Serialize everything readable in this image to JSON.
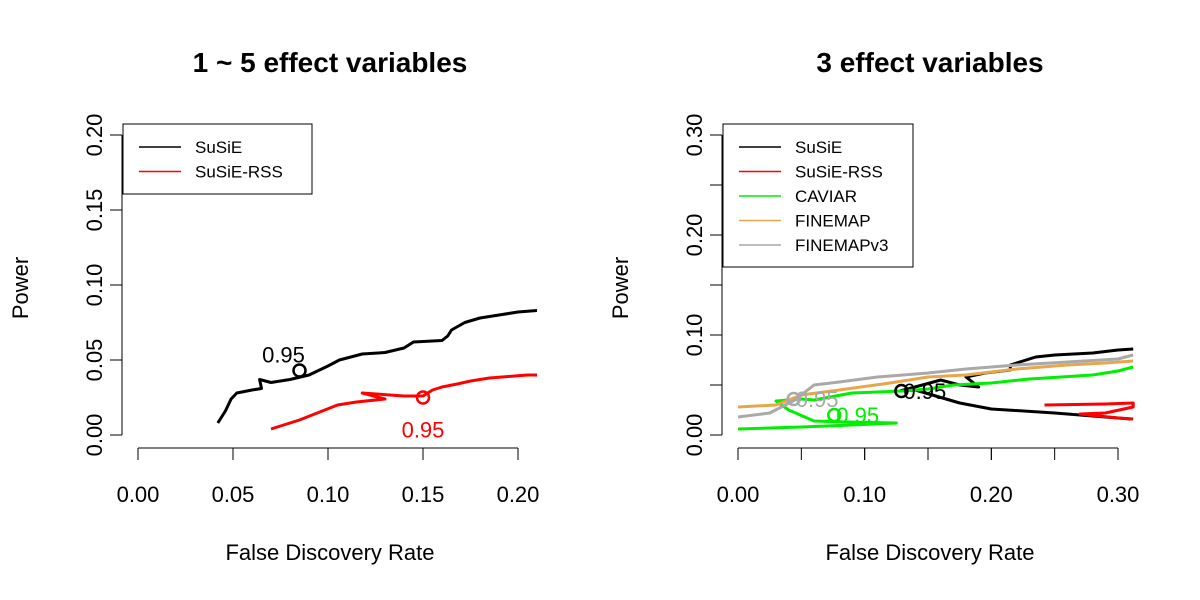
{
  "chart_data": [
    {
      "type": "line",
      "title": "1 ~ 5 effect variables",
      "xlabel": "False Discovery Rate",
      "ylabel": "Power",
      "xlim": [
        0.0,
        0.2
      ],
      "ylim": [
        0.0,
        0.2
      ],
      "x_ticks": [
        "0.00",
        "0.05",
        "0.10",
        "0.15",
        "0.20"
      ],
      "y_ticks": [
        "0.00",
        "0.05",
        "0.10",
        "0.15",
        "0.20"
      ],
      "grid": false,
      "legend_position": "top-left",
      "series": [
        {
          "name": "SuSiE",
          "color": "#000000",
          "points": [
            [
              0.042,
              0.008
            ],
            [
              0.046,
              0.016
            ],
            [
              0.049,
              0.024
            ],
            [
              0.052,
              0.028
            ],
            [
              0.06,
              0.03
            ],
            [
              0.065,
              0.031
            ],
            [
              0.064,
              0.037
            ],
            [
              0.07,
              0.035
            ],
            [
              0.08,
              0.037
            ],
            [
              0.09,
              0.04
            ],
            [
              0.1,
              0.046
            ],
            [
              0.106,
              0.05
            ],
            [
              0.112,
              0.052
            ],
            [
              0.118,
              0.054
            ],
            [
              0.13,
              0.055
            ],
            [
              0.14,
              0.058
            ],
            [
              0.145,
              0.062
            ],
            [
              0.16,
              0.063
            ],
            [
              0.163,
              0.066
            ],
            [
              0.165,
              0.07
            ],
            [
              0.172,
              0.075
            ],
            [
              0.18,
              0.078
            ],
            [
              0.19,
              0.08
            ],
            [
              0.2,
              0.082
            ],
            [
              0.21,
              0.083
            ]
          ],
          "threshold_marker": {
            "x": 0.085,
            "y": 0.043,
            "label": "0.95"
          }
        },
        {
          "name": "SuSiE-RSS",
          "color": "#ff0000",
          "points": [
            [
              0.07,
              0.004
            ],
            [
              0.085,
              0.01
            ],
            [
              0.097,
              0.016
            ],
            [
              0.105,
              0.02
            ],
            [
              0.115,
              0.022
            ],
            [
              0.13,
              0.024
            ],
            [
              0.118,
              0.028
            ],
            [
              0.14,
              0.026
            ],
            [
              0.15,
              0.026
            ],
            [
              0.155,
              0.03
            ],
            [
              0.16,
              0.032
            ],
            [
              0.168,
              0.034
            ],
            [
              0.175,
              0.036
            ],
            [
              0.185,
              0.038
            ],
            [
              0.195,
              0.039
            ],
            [
              0.205,
              0.04
            ],
            [
              0.21,
              0.04
            ]
          ],
          "threshold_marker": {
            "x": 0.15,
            "y": 0.025,
            "label": "0.95"
          }
        }
      ]
    },
    {
      "type": "line",
      "title": "3 effect variables",
      "xlabel": "False Discovery Rate",
      "ylabel": "Power",
      "xlim": [
        0.0,
        0.3
      ],
      "ylim": [
        0.0,
        0.3
      ],
      "x_ticks": [
        "0.00",
        "0.10",
        "0.20",
        "0.30"
      ],
      "y_ticks": [
        "0.00",
        "0.10",
        "0.20",
        "0.30"
      ],
      "grid": false,
      "legend_position": "top-left",
      "series": [
        {
          "name": "SuSiE",
          "color": "#000000",
          "points": [
            [
              0.31,
              0.016
            ],
            [
              0.25,
              0.022
            ],
            [
              0.2,
              0.026
            ],
            [
              0.175,
              0.032
            ],
            [
              0.14,
              0.045
            ],
            [
              0.128,
              0.044
            ],
            [
              0.16,
              0.055
            ],
            [
              0.175,
              0.05
            ],
            [
              0.19,
              0.048
            ],
            [
              0.18,
              0.058
            ],
            [
              0.195,
              0.062
            ],
            [
              0.215,
              0.065
            ],
            [
              0.215,
              0.07
            ],
            [
              0.235,
              0.078
            ],
            [
              0.25,
              0.08
            ],
            [
              0.28,
              0.082
            ],
            [
              0.3,
              0.085
            ],
            [
              0.312,
              0.086
            ]
          ],
          "threshold_marker": {
            "x": 0.129,
            "y": 0.044,
            "label": "0.95"
          }
        },
        {
          "name": "SuSiE-RSS",
          "color": "#ff0000",
          "points": [
            [
              0.242,
              0.03
            ],
            [
              0.29,
              0.031
            ],
            [
              0.312,
              0.032
            ],
            [
              0.312,
              0.028
            ],
            [
              0.29,
              0.022
            ],
            [
              0.27,
              0.021
            ],
            [
              0.3,
              0.017
            ],
            [
              0.312,
              0.016
            ]
          ]
        },
        {
          "name": "CAVIAR",
          "color": "#00ee00",
          "points": [
            [
              0.0,
              0.006
            ],
            [
              0.05,
              0.008
            ],
            [
              0.09,
              0.01
            ],
            [
              0.125,
              0.012
            ],
            [
              0.085,
              0.013
            ],
            [
              0.06,
              0.014
            ],
            [
              0.04,
              0.025
            ],
            [
              0.03,
              0.034
            ],
            [
              0.05,
              0.036
            ],
            [
              0.06,
              0.035
            ],
            [
              0.09,
              0.042
            ],
            [
              0.13,
              0.044
            ],
            [
              0.15,
              0.046
            ],
            [
              0.17,
              0.05
            ],
            [
              0.2,
              0.052
            ],
            [
              0.23,
              0.056
            ],
            [
              0.28,
              0.06
            ],
            [
              0.3,
              0.064
            ],
            [
              0.312,
              0.068
            ]
          ],
          "threshold_marker": {
            "x": 0.076,
            "y": 0.02,
            "label": "0.95"
          }
        },
        {
          "name": "FINEMAP",
          "color": "#e6a64c",
          "points": [
            [
              0.0,
              0.028
            ],
            [
              0.03,
              0.03
            ],
            [
              0.05,
              0.04
            ],
            [
              0.08,
              0.045
            ],
            [
              0.12,
              0.052
            ],
            [
              0.15,
              0.058
            ],
            [
              0.18,
              0.06
            ],
            [
              0.22,
              0.066
            ],
            [
              0.26,
              0.07
            ],
            [
              0.29,
              0.072
            ],
            [
              0.312,
              0.074
            ]
          ]
        },
        {
          "name": "FINEMAPv3",
          "color": "#a9a9a9",
          "points": [
            [
              0.0,
              0.018
            ],
            [
              0.025,
              0.022
            ],
            [
              0.045,
              0.035
            ],
            [
              0.06,
              0.05
            ],
            [
              0.08,
              0.053
            ],
            [
              0.11,
              0.058
            ],
            [
              0.15,
              0.062
            ],
            [
              0.18,
              0.066
            ],
            [
              0.22,
              0.07
            ],
            [
              0.26,
              0.073
            ],
            [
              0.3,
              0.076
            ],
            [
              0.312,
              0.08
            ]
          ],
          "threshold_marker": {
            "x": 0.044,
            "y": 0.036,
            "label": "0.95"
          }
        }
      ]
    }
  ]
}
